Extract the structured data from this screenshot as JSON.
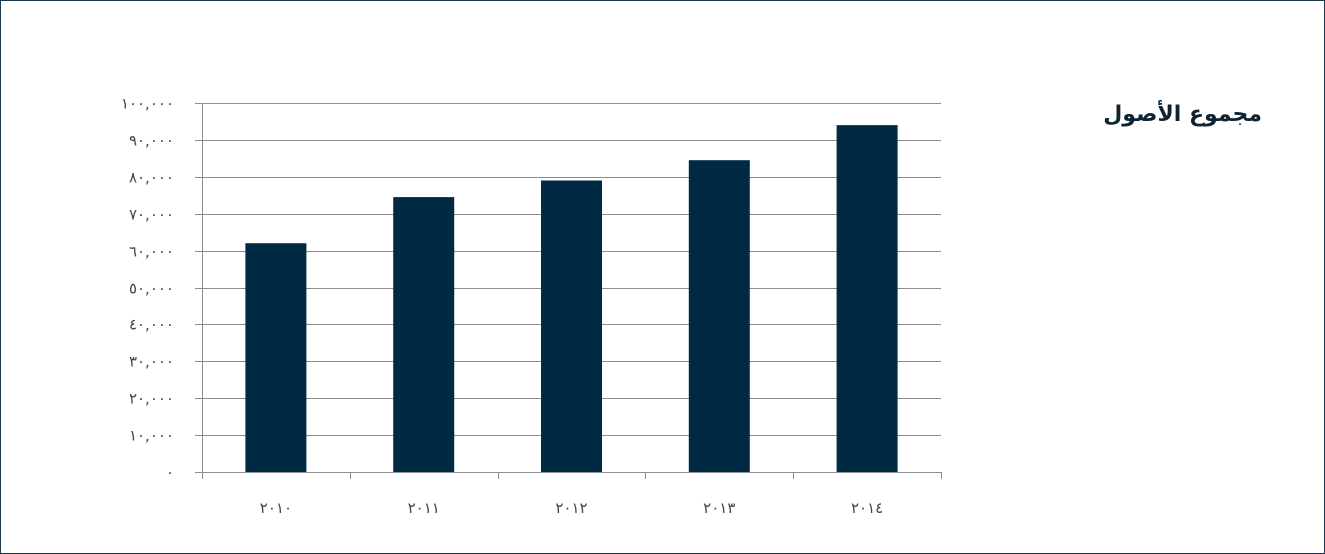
{
  "chart_data": {
    "type": "bar",
    "title": "مجموع الأصول",
    "xlabel": "",
    "ylabel": "",
    "categories": [
      "٢٠١٠",
      "٢٠١١",
      "٢٠١٢",
      "٢٠١٣",
      "٢٠١٤"
    ],
    "values": [
      62000,
      74500,
      79000,
      84500,
      94000
    ],
    "ylim": [
      0,
      100000
    ],
    "yticks": [
      0,
      10000,
      20000,
      30000,
      40000,
      50000,
      60000,
      70000,
      80000,
      90000,
      100000
    ],
    "ytick_labels": [
      "٠",
      "١٠,٠٠٠",
      "٢٠,٠٠٠",
      "٣٠,٠٠٠",
      "٤٠,٠٠٠",
      "٥٠,٠٠٠",
      "٦٠,٠٠٠",
      "٧٠,٠٠٠",
      "٨٠,٠٠٠",
      "٩٠,٠٠٠",
      "١٠٠,٠٠٠"
    ],
    "grid": true,
    "legend": "none",
    "bar_color": "#002a44",
    "grid_color": "#8c8c8c"
  }
}
